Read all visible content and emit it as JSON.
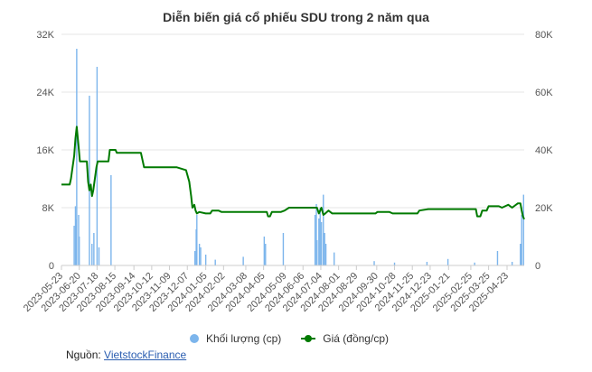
{
  "chart_data": {
    "type": "bar+line",
    "title": "Diễn biến giá cổ phiếu SDU trong 2 năm qua",
    "x_tick_labels": [
      "2023-05-23",
      "2023-06-20",
      "2023-07-18",
      "2023-08-15",
      "2023-09-14",
      "2023-10-12",
      "2023-11-09",
      "2023-12-07",
      "2024-01-05",
      "2024-02-02",
      "2024-03-08",
      "2024-04-05",
      "2024-05-09",
      "2024-06-06",
      "2024-07-04",
      "2024-08-01",
      "2024-08-29",
      "2024-09-30",
      "2024-10-28",
      "2024-11-25",
      "2024-12-23",
      "2025-01-21",
      "2025-02-25",
      "2025-03-25",
      "2025-04-23"
    ],
    "x_range": [
      "2023-05-23",
      "2025-05-20"
    ],
    "left_axis": {
      "ticks": [
        "0",
        "8K",
        "16K",
        "24K",
        "32K"
      ],
      "values": [
        0,
        8000,
        16000,
        24000,
        32000
      ],
      "range": [
        0,
        32000
      ]
    },
    "right_axis": {
      "ticks": [
        "0",
        "20K",
        "40K",
        "60K",
        "80K"
      ],
      "values": [
        0,
        20000,
        40000,
        60000,
        80000
      ],
      "range": [
        0,
        80000
      ]
    },
    "grid": true,
    "legend_position": "bottom",
    "series": [
      {
        "name": "Khối lượng (cp)",
        "type": "bar",
        "axis": "left",
        "color": "#7cb5ec",
        "points": [
          [
            "2023-06-12",
            5500
          ],
          [
            "2023-06-14",
            8200
          ],
          [
            "2023-06-15",
            6400
          ],
          [
            "2023-06-16",
            30000
          ],
          [
            "2023-06-19",
            7000
          ],
          [
            "2023-06-20",
            4000
          ],
          [
            "2023-07-06",
            23500
          ],
          [
            "2023-07-10",
            3000
          ],
          [
            "2023-07-13",
            4500
          ],
          [
            "2023-07-18",
            27500
          ],
          [
            "2023-07-21",
            2500
          ],
          [
            "2023-08-09",
            12500
          ],
          [
            "2023-12-19",
            2000
          ],
          [
            "2023-12-21",
            5000
          ],
          [
            "2023-12-22",
            7000
          ],
          [
            "2023-12-26",
            3000
          ],
          [
            "2023-12-28",
            2500
          ],
          [
            "2024-01-05",
            1500
          ],
          [
            "2024-01-20",
            800
          ],
          [
            "2024-03-04",
            1200
          ],
          [
            "2024-04-06",
            4000
          ],
          [
            "2024-04-08",
            3000
          ],
          [
            "2024-05-06",
            4500
          ],
          [
            "2024-06-25",
            7000
          ],
          [
            "2024-06-27",
            8500
          ],
          [
            "2024-06-28",
            3500
          ],
          [
            "2024-07-01",
            6500
          ],
          [
            "2024-07-03",
            8000
          ],
          [
            "2024-07-05",
            6000
          ],
          [
            "2024-07-08",
            9800
          ],
          [
            "2024-07-10",
            4500
          ],
          [
            "2024-07-12",
            3000
          ],
          [
            "2024-07-25",
            1800
          ],
          [
            "2024-09-26",
            600
          ],
          [
            "2024-10-28",
            400
          ],
          [
            "2024-12-18",
            500
          ],
          [
            "2025-01-20",
            900
          ],
          [
            "2025-03-03",
            400
          ],
          [
            "2025-04-08",
            2000
          ],
          [
            "2025-05-01",
            500
          ],
          [
            "2025-05-14",
            3000
          ],
          [
            "2025-05-16",
            7000
          ],
          [
            "2025-05-19",
            9800
          ]
        ]
      },
      {
        "name": "Giá (đồng/cp)",
        "type": "line",
        "axis": "right",
        "color": "#007a00",
        "points": [
          [
            "2023-05-23",
            28000
          ],
          [
            "2023-06-05",
            28000
          ],
          [
            "2023-06-07",
            30000
          ],
          [
            "2023-06-12",
            38000
          ],
          [
            "2023-06-14",
            44000
          ],
          [
            "2023-06-16",
            48000
          ],
          [
            "2023-06-19",
            41000
          ],
          [
            "2023-06-21",
            36000
          ],
          [
            "2023-06-23",
            36000
          ],
          [
            "2023-07-02",
            36000
          ],
          [
            "2023-07-04",
            29000
          ],
          [
            "2023-07-06",
            26000
          ],
          [
            "2023-07-08",
            28000
          ],
          [
            "2023-07-10",
            24000
          ],
          [
            "2023-07-12",
            26000
          ],
          [
            "2023-07-17",
            34000
          ],
          [
            "2023-07-19",
            36000
          ],
          [
            "2023-08-05",
            36000
          ],
          [
            "2023-08-07",
            40000
          ],
          [
            "2023-08-16",
            40000
          ],
          [
            "2023-08-18",
            39000
          ],
          [
            "2023-09-25",
            39000
          ],
          [
            "2023-09-30",
            34000
          ],
          [
            "2023-11-20",
            34000
          ],
          [
            "2023-12-05",
            33000
          ],
          [
            "2023-12-10",
            29000
          ],
          [
            "2023-12-13",
            24000
          ],
          [
            "2023-12-15",
            20000
          ],
          [
            "2023-12-18",
            21000
          ],
          [
            "2023-12-20",
            19000
          ],
          [
            "2023-12-22",
            18000
          ],
          [
            "2023-12-26",
            18500
          ],
          [
            "2024-01-05",
            18000
          ],
          [
            "2024-01-12",
            18000
          ],
          [
            "2024-01-15",
            19000
          ],
          [
            "2024-01-25",
            19000
          ],
          [
            "2024-01-30",
            18500
          ],
          [
            "2024-02-15",
            18500
          ],
          [
            "2024-03-25",
            18500
          ],
          [
            "2024-04-10",
            18500
          ],
          [
            "2024-04-12",
            17000
          ],
          [
            "2024-04-15",
            17000
          ],
          [
            "2024-04-18",
            18500
          ],
          [
            "2024-05-02",
            18500
          ],
          [
            "2024-05-08",
            19000
          ],
          [
            "2024-05-15",
            20000
          ],
          [
            "2024-06-28",
            20000
          ],
          [
            "2024-07-01",
            18000
          ],
          [
            "2024-07-03",
            19000
          ],
          [
            "2024-07-05",
            20000
          ],
          [
            "2024-07-08",
            17500
          ],
          [
            "2024-07-11",
            18000
          ],
          [
            "2024-07-16",
            19000
          ],
          [
            "2024-07-22",
            18000
          ],
          [
            "2024-07-28",
            18000
          ],
          [
            "2024-08-15",
            18000
          ],
          [
            "2024-09-05",
            18000
          ],
          [
            "2024-09-28",
            18000
          ],
          [
            "2024-10-01",
            18500
          ],
          [
            "2024-10-20",
            18500
          ],
          [
            "2024-10-25",
            18000
          ],
          [
            "2024-11-20",
            18000
          ],
          [
            "2024-12-03",
            18000
          ],
          [
            "2024-12-06",
            19000
          ],
          [
            "2024-12-20",
            19500
          ],
          [
            "2025-01-20",
            19500
          ],
          [
            "2025-02-25",
            19500
          ],
          [
            "2025-03-05",
            19500
          ],
          [
            "2025-03-07",
            17000
          ],
          [
            "2025-03-12",
            17000
          ],
          [
            "2025-03-15",
            19000
          ],
          [
            "2025-03-22",
            19000
          ],
          [
            "2025-03-25",
            20500
          ],
          [
            "2025-04-10",
            20500
          ],
          [
            "2025-04-15",
            20000
          ],
          [
            "2025-04-20",
            20500
          ],
          [
            "2025-04-25",
            21000
          ],
          [
            "2025-05-01",
            20000
          ],
          [
            "2025-05-10",
            21500
          ],
          [
            "2025-05-14",
            21500
          ],
          [
            "2025-05-16",
            19000
          ],
          [
            "2025-05-18",
            17000
          ],
          [
            "2025-05-20",
            16000
          ]
        ]
      }
    ]
  },
  "legend": {
    "volume_label": "Khối lượng (cp)",
    "price_label": "Giá (đồng/cp)"
  },
  "source": {
    "label": "Nguồn:",
    "link_text": "VietstockFinance"
  }
}
